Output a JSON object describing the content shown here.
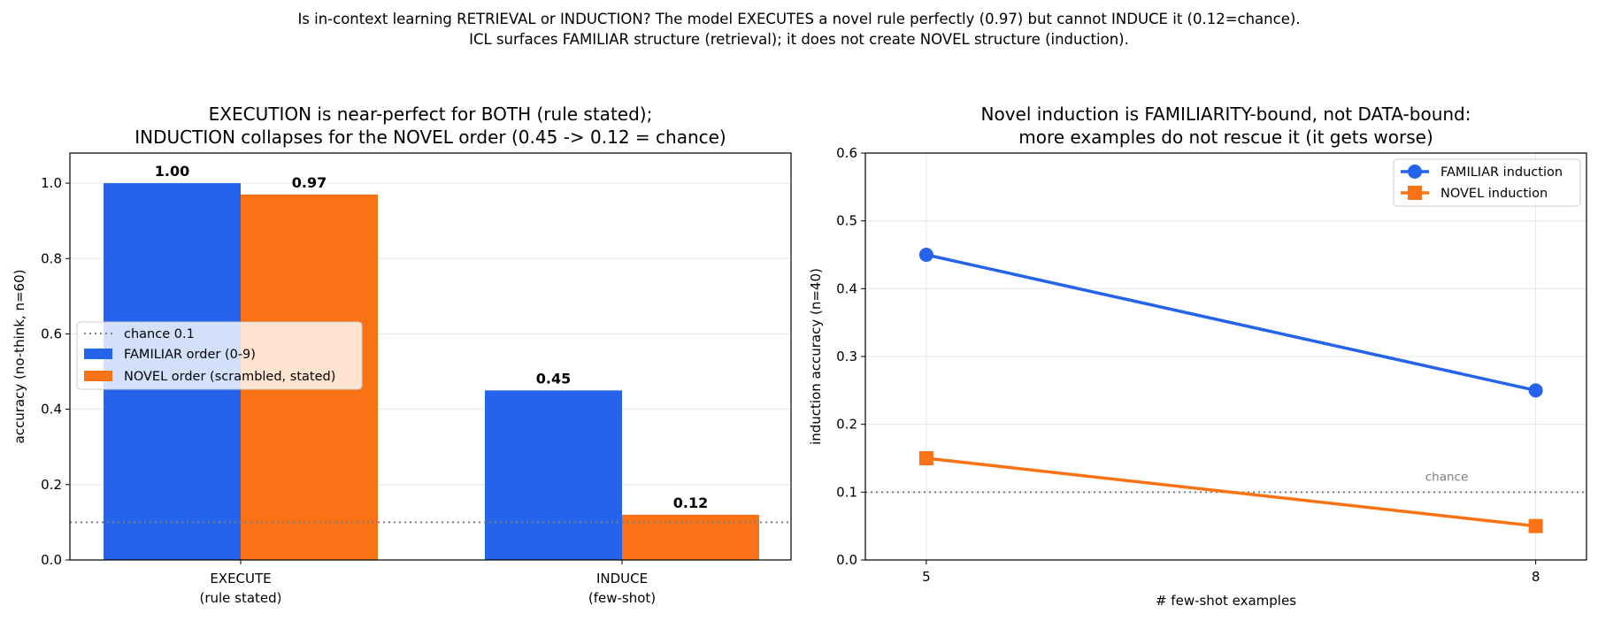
{
  "suptitle": {
    "line1": "Is in-context learning RETRIEVAL or INDUCTION? The model EXECUTES a novel rule perfectly (0.97) but cannot INDUCE it (0.12=chance).",
    "line2": "ICL surfaces FAMILIAR structure (retrieval); it does not create NOVEL structure (induction)."
  },
  "colors": {
    "familiar": "#2563eb",
    "novel": "#f97316",
    "chance": "#808080",
    "grid": "#e6e6e6"
  },
  "chart_data": [
    {
      "type": "bar",
      "title": [
        "EXECUTION is near-perfect for BOTH (rule stated);",
        "INDUCTION collapses for the NOVEL order (0.45 -> 0.12 = chance)"
      ],
      "categories": [
        [
          "EXECUTE",
          "(rule stated)"
        ],
        [
          "INDUCE",
          "(few-shot)"
        ]
      ],
      "series": [
        {
          "name": "FAMILIAR order (0-9)",
          "values": [
            1.0,
            0.45
          ],
          "labels": [
            "1.00",
            "0.45"
          ],
          "color": "#2563eb"
        },
        {
          "name": "NOVEL order (scrambled, stated)",
          "values": [
            0.97,
            0.12
          ],
          "labels": [
            "0.97",
            "0.12"
          ],
          "color": "#f97316"
        }
      ],
      "chance": {
        "value": 0.1,
        "label": "chance 0.1"
      },
      "ylabel": "accuracy (no-think, n=60)",
      "ylim": [
        0,
        1.08
      ],
      "yticks": [
        0.0,
        0.2,
        0.4,
        0.6,
        0.8,
        1.0
      ],
      "ytick_labels": [
        "0.0",
        "0.2",
        "0.4",
        "0.6",
        "0.8",
        "1.0"
      ],
      "grid": "y",
      "legend": "center-left"
    },
    {
      "type": "line",
      "title": [
        "Novel induction is FAMILIARITY-bound, not DATA-bound:",
        "more examples do not rescue it (it gets worse)"
      ],
      "x": [
        5,
        8
      ],
      "xticks": [
        5,
        8
      ],
      "xtick_labels": [
        "5",
        "8"
      ],
      "xlim": [
        4.7,
        8.25
      ],
      "series": [
        {
          "name": "FAMILIAR induction",
          "values": [
            0.45,
            0.25
          ],
          "marker": "circle",
          "color": "#2563eb"
        },
        {
          "name": "NOVEL induction",
          "values": [
            0.15,
            0.05
          ],
          "marker": "square",
          "color": "#f97316"
        }
      ],
      "chance": {
        "value": 0.1,
        "label": "chance"
      },
      "xlabel": "# few-shot examples",
      "ylabel": "induction accuracy (n=40)",
      "ylim": [
        0,
        0.6
      ],
      "yticks": [
        0.0,
        0.1,
        0.2,
        0.3,
        0.4,
        0.5,
        0.6
      ],
      "ytick_labels": [
        "0.0",
        "0.1",
        "0.2",
        "0.3",
        "0.4",
        "0.5",
        "0.6"
      ],
      "grid": "both",
      "legend": "top-right"
    }
  ]
}
